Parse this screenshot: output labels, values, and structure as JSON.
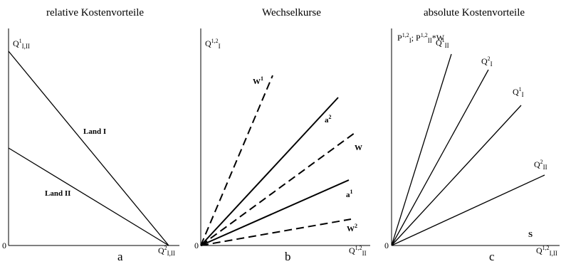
{
  "panels": {
    "a": {
      "title": "relative Kostenvorteile",
      "letter": "a",
      "origin": "0",
      "y_axis": {
        "base": "Q",
        "sup": "1",
        "sub": "I,II"
      },
      "x_axis": {
        "base": "Q",
        "sup": "2",
        "sub": "I,II"
      },
      "land1": "Land I",
      "land2": "Land II"
    },
    "b": {
      "title": "Wechselkurse",
      "letter": "b",
      "origin": "0",
      "y_axis": {
        "base": "Q",
        "sup": "1,2",
        "sub": "I"
      },
      "x_axis": {
        "base": "Q",
        "sup": "1,2",
        "sub": "II"
      },
      "w1": {
        "base": "W",
        "sup": "1"
      },
      "a2": {
        "base": "a",
        "sup": "2"
      },
      "w": {
        "base": "W"
      },
      "a1": {
        "base": "a",
        "sup": "1"
      },
      "w2": {
        "base": "W",
        "sup": "2"
      }
    },
    "c": {
      "title": "absolute Kostenvorteile",
      "letter": "c",
      "origin": "0",
      "y_label": {
        "p1": "P",
        "p1_sup": "1,2",
        "p1_sub": "I",
        "sep": "; ",
        "p2": "P",
        "p2_sup": "1,2",
        "p2_sub": "II",
        "times": "*W"
      },
      "qII1": {
        "base": "Q",
        "sup": "1",
        "sub": "II"
      },
      "qI2": {
        "base": "Q",
        "sup": "2",
        "sub": "I"
      },
      "qI1": {
        "base": "Q",
        "sup": "1",
        "sub": "I"
      },
      "qII2": {
        "base": "Q",
        "sup": "2",
        "sub": "II"
      },
      "s": "S",
      "x_axis": {
        "base": "Q",
        "sup": "1,2",
        "sub": "I,II"
      }
    }
  }
}
